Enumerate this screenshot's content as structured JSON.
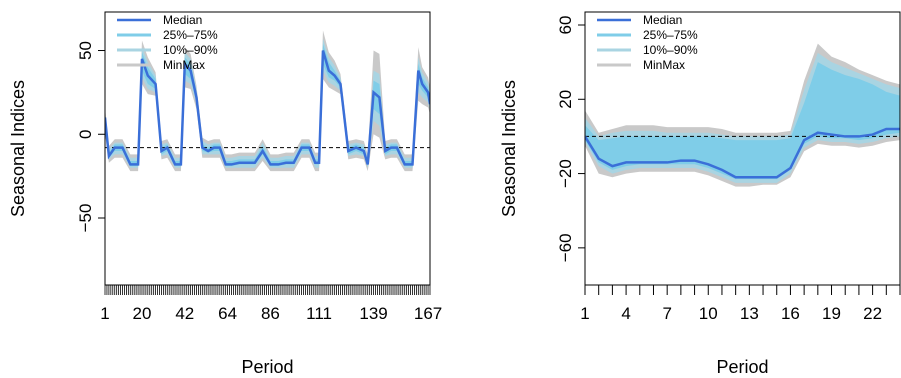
{
  "chart_data": [
    {
      "type": "area",
      "xlabel": "Period",
      "ylabel": "Seasonal Indices",
      "xlim": [
        1,
        168
      ],
      "ylim": [
        -90,
        73
      ],
      "x_ticks": [
        1,
        20,
        42,
        64,
        86,
        111,
        139,
        167
      ],
      "y_ticks": [
        50,
        0,
        -50
      ],
      "reference_line": -8,
      "legend_position": "top-left",
      "legend": [
        "Median",
        "25%–75%",
        "10%–90%",
        "MinMax"
      ],
      "colors": {
        "median": "#3a6fd8",
        "iqr": "#7fcde8",
        "p10_90": "#a9d4e2",
        "minmax": "#c9c9c9"
      },
      "series": {
        "x": [
          1,
          3,
          6,
          10,
          14,
          18,
          20,
          23,
          27,
          30,
          33,
          37,
          40,
          42,
          45,
          48,
          51,
          54,
          57,
          60,
          63,
          66,
          70,
          74,
          78,
          82,
          86,
          90,
          94,
          98,
          102,
          106,
          109,
          111,
          113,
          116,
          119,
          122,
          126,
          130,
          134,
          136,
          139,
          142,
          145,
          148,
          151,
          155,
          159,
          162,
          164,
          167,
          168
        ],
        "median": [
          10,
          -13,
          -8,
          -8,
          -18,
          -18,
          45,
          35,
          30,
          -10,
          -8,
          -18,
          -18,
          42,
          38,
          22,
          -8,
          -10,
          -8,
          -8,
          -18,
          -18,
          -17,
          -17,
          -17,
          -10,
          -18,
          -18,
          -17,
          -17,
          -8,
          -8,
          -17,
          -17,
          50,
          38,
          35,
          30,
          -10,
          -8,
          -10,
          -18,
          25,
          22,
          -10,
          -8,
          -8,
          -18,
          -18,
          38,
          30,
          25,
          18
        ],
        "q25": [
          5,
          -14,
          -10,
          -10,
          -19,
          -19,
          38,
          30,
          27,
          -12,
          -10,
          -19,
          -19,
          36,
          33,
          20,
          -10,
          -11,
          -10,
          -10,
          -19,
          -19,
          -18,
          -18,
          -18,
          -12,
          -19,
          -19,
          -18,
          -18,
          -10,
          -10,
          -18,
          -18,
          42,
          34,
          32,
          28,
          -12,
          -10,
          -12,
          -19,
          15,
          12,
          -12,
          -10,
          -10,
          -19,
          -19,
          30,
          26,
          22,
          16
        ],
        "q75": [
          12,
          -11,
          -6,
          -6,
          -16,
          -16,
          49,
          40,
          33,
          -8,
          -6,
          -16,
          -16,
          46,
          42,
          25,
          -6,
          -8,
          -6,
          -6,
          -16,
          -16,
          -15,
          -15,
          -15,
          -7,
          -16,
          -16,
          -15,
          -15,
          -6,
          -6,
          -15,
          -15,
          54,
          43,
          38,
          32,
          -8,
          -6,
          -8,
          -16,
          32,
          30,
          -8,
          -6,
          -6,
          -16,
          -16,
          42,
          34,
          28,
          22
        ],
        "p10": [
          2,
          -15,
          -12,
          -12,
          -20,
          -20,
          34,
          27,
          25,
          -13,
          -12,
          -20,
          -20,
          32,
          30,
          18,
          -12,
          -12,
          -12,
          -12,
          -20,
          -20,
          -20,
          -20,
          -20,
          -14,
          -20,
          -20,
          -20,
          -20,
          -12,
          -12,
          -20,
          -20,
          38,
          31,
          29,
          26,
          -13,
          -12,
          -13,
          -20,
          8,
          5,
          -13,
          -12,
          -12,
          -20,
          -20,
          25,
          22,
          19,
          14
        ],
        "p90": [
          14,
          -9,
          -5,
          -5,
          -14,
          -14,
          52,
          43,
          35,
          -6,
          -5,
          -14,
          -14,
          49,
          45,
          27,
          -4,
          -6,
          -5,
          -5,
          -14,
          -14,
          -13,
          -13,
          -13,
          -5,
          -14,
          -14,
          -13,
          -13,
          -5,
          -5,
          -13,
          -13,
          57,
          46,
          41,
          34,
          -6,
          -5,
          -6,
          -14,
          38,
          36,
          -6,
          -5,
          -5,
          -14,
          -14,
          46,
          37,
          31,
          25
        ],
        "min": [
          0,
          -17,
          -14,
          -14,
          -22,
          -22,
          30,
          24,
          23,
          -15,
          -14,
          -22,
          -22,
          28,
          27,
          15,
          -14,
          -14,
          -14,
          -14,
          -22,
          -22,
          -22,
          -22,
          -22,
          -16,
          -22,
          -22,
          -22,
          -22,
          -14,
          -14,
          -22,
          -22,
          33,
          28,
          26,
          24,
          -15,
          -14,
          -15,
          -22,
          0,
          -2,
          -15,
          -14,
          -14,
          -22,
          -22,
          20,
          18,
          16,
          12
        ],
        "max": [
          16,
          -7,
          -3,
          -3,
          -12,
          -12,
          56,
          46,
          37,
          -4,
          -3,
          -12,
          -12,
          52,
          48,
          29,
          -2,
          -4,
          -3,
          -3,
          -12,
          -12,
          -11,
          -11,
          -11,
          -3,
          -12,
          -12,
          -11,
          -11,
          -3,
          -3,
          -11,
          -11,
          62,
          49,
          44,
          36,
          -4,
          -3,
          -4,
          -12,
          50,
          48,
          -4,
          -3,
          -3,
          -12,
          -12,
          52,
          40,
          34,
          28
        ]
      }
    },
    {
      "type": "area",
      "xlabel": "Period",
      "ylabel": "Seasonal Indices",
      "xlim": [
        1,
        24
      ],
      "ylim": [
        -80,
        67
      ],
      "x_ticks": [
        1,
        4,
        7,
        10,
        13,
        16,
        19,
        22
      ],
      "y_ticks": [
        60,
        20,
        -20,
        -60
      ],
      "reference_line": 0,
      "legend_position": "top-left",
      "legend": [
        "Median",
        "25%–75%",
        "10%–90%",
        "MinMax"
      ],
      "colors": {
        "median": "#3a6fd8",
        "iqr": "#7fcde8",
        "p10_90": "#a9d4e2",
        "minmax": "#c9c9c9"
      },
      "series": {
        "x": [
          1,
          2,
          3,
          4,
          5,
          6,
          7,
          8,
          9,
          10,
          11,
          12,
          13,
          14,
          15,
          16,
          17,
          18,
          19,
          20,
          21,
          22,
          23,
          24
        ],
        "median": [
          0,
          -12,
          -16,
          -14,
          -14,
          -14,
          -14,
          -13,
          -13,
          -15,
          -18,
          -22,
          -22,
          -22,
          -22,
          -17,
          -2,
          2,
          1,
          0,
          0,
          1,
          4,
          4
        ],
        "q25": [
          -2,
          -14,
          -18,
          -16,
          -15,
          -15,
          -15,
          -15,
          -15,
          -17,
          -20,
          -23,
          -23,
          -23,
          -23,
          -18,
          -4,
          0,
          -1,
          -1,
          -2,
          -1,
          1,
          2
        ],
        "q75": [
          6,
          -2,
          -1,
          0,
          0,
          0,
          0,
          0,
          0,
          0,
          -1,
          -2,
          -2,
          -2,
          -2,
          -1,
          18,
          40,
          36,
          33,
          31,
          28,
          24,
          22
        ],
        "p10": [
          -3,
          -16,
          -20,
          -18,
          -17,
          -17,
          -17,
          -17,
          -17,
          -19,
          -22,
          -25,
          -25,
          -25,
          -25,
          -20,
          -6,
          -2,
          -3,
          -3,
          -4,
          -3,
          -1,
          0
        ],
        "p90": [
          10,
          0,
          2,
          3,
          3,
          3,
          2,
          2,
          2,
          2,
          1,
          0,
          0,
          0,
          0,
          1,
          25,
          45,
          40,
          37,
          34,
          31,
          28,
          26
        ],
        "min": [
          -5,
          -20,
          -22,
          -20,
          -19,
          -19,
          -19,
          -19,
          -19,
          -21,
          -24,
          -27,
          -27,
          -26,
          -26,
          -22,
          -8,
          -4,
          -5,
          -5,
          -6,
          -5,
          -3,
          -2
        ],
        "max": [
          14,
          2,
          4,
          6,
          6,
          6,
          5,
          5,
          5,
          5,
          4,
          2,
          2,
          2,
          2,
          3,
          30,
          50,
          43,
          40,
          36,
          33,
          30,
          28
        ]
      }
    }
  ]
}
